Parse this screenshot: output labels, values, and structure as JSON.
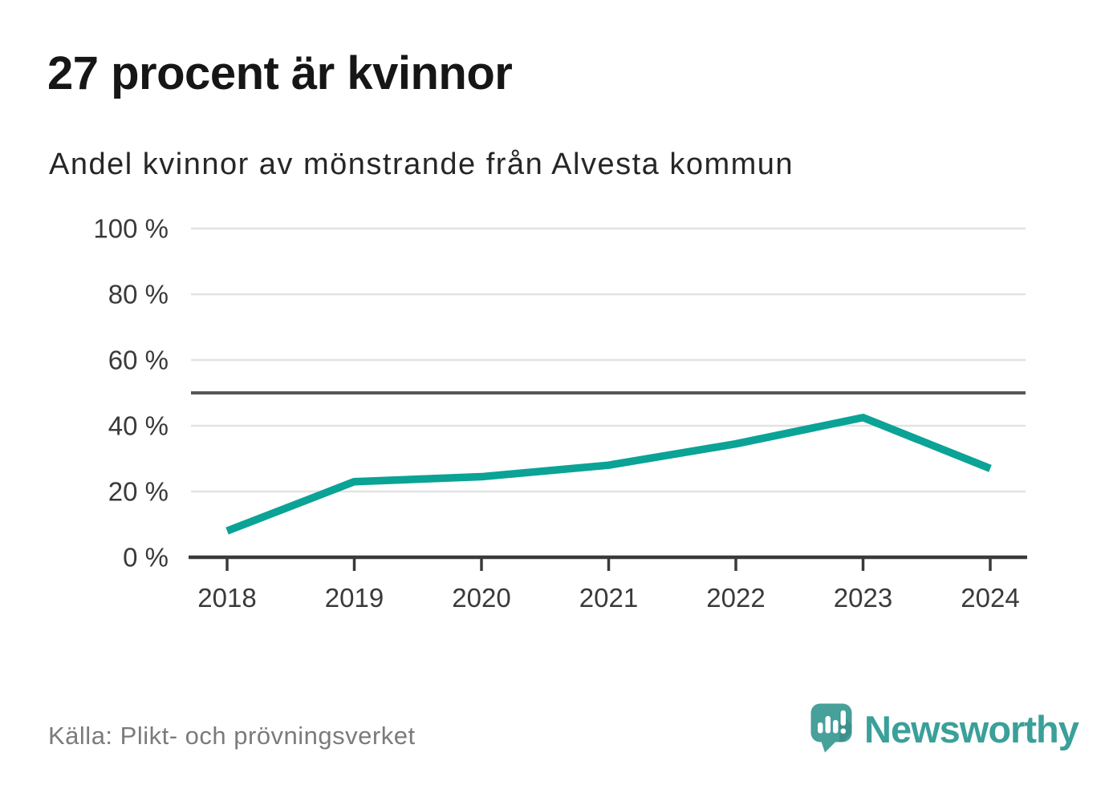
{
  "title": "27 procent är kvinnor",
  "subtitle": "Andel kvinnor av mönstrande från Alvesta kommun",
  "source": "Källa: Plikt- och prövningsverket",
  "brand": {
    "name": "Newsworthy",
    "icon": "newsworthy-speech-bubble-bar-chart-icon"
  },
  "colors": {
    "line": "#0aa396",
    "grid": "#e2e2e2",
    "reference_line": "#57575b",
    "axis": "#3a3a3a",
    "tick_label": "#3a3a3a",
    "title_text": "#161616",
    "subtitle_text": "#262626",
    "source_text": "#7b7b7b",
    "brand_teal": "#3aa099",
    "logo_bubble": "#47a09a"
  },
  "chart_data": {
    "type": "line",
    "title": "27 procent är kvinnor",
    "subtitle": "Andel kvinnor av mönstrande från Alvesta kommun",
    "x": [
      "2018",
      "2019",
      "2020",
      "2021",
      "2022",
      "2023",
      "2024"
    ],
    "series": [
      {
        "name": "Andel kvinnor av mönstrande",
        "values": [
          8,
          23,
          24.5,
          28,
          34.5,
          42.5,
          27
        ]
      }
    ],
    "ylim": [
      0,
      100
    ],
    "yticks": [
      0,
      20,
      40,
      60,
      80,
      100
    ],
    "ytick_suffix": " %",
    "ytick_labels": [
      "0 %",
      "20 %",
      "40 %",
      "60 %",
      "80 %",
      "100 %"
    ],
    "reference_line": 50,
    "grid": true,
    "legend": "none",
    "line_color": "#0aa396",
    "unit": "%"
  }
}
